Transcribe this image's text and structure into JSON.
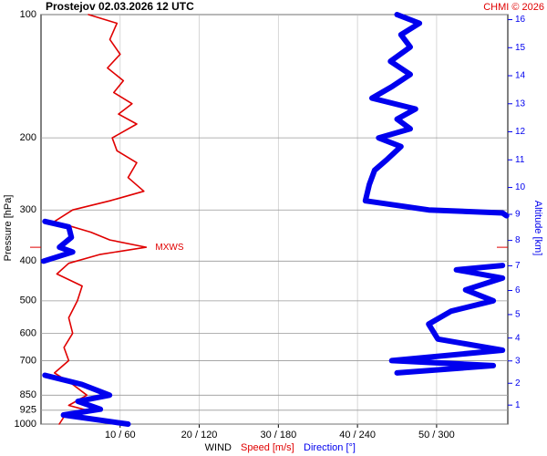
{
  "chart_data": {
    "type": "line",
    "title": "Prostejov    02.03.2026 12 UTC",
    "credit": "CHMI © 2026",
    "ylabel": "Pressure [hPa]",
    "y2label": "Altitude [km]",
    "xlabel_prefix": "WIND",
    "xlabel_speed": "Speed [m/s]",
    "xlabel_direction": "Direction [°]",
    "annotation": {
      "text": "MXWS",
      "pressure": 370
    },
    "log_y": true,
    "ylim": [
      1000,
      100
    ],
    "yticks": [
      100,
      200,
      300,
      400,
      500,
      600,
      700,
      850,
      925,
      1000
    ],
    "y2ticks": [
      1,
      2,
      3,
      4,
      5,
      6,
      7,
      8,
      9,
      10,
      11,
      12,
      13,
      14,
      15,
      16
    ],
    "xlim": [
      0,
      59
    ],
    "x2lim": [
      0,
      354
    ],
    "xticks": [
      {
        "value": 10,
        "label": "10 / 60"
      },
      {
        "value": 20,
        "label": "20 / 120"
      },
      {
        "value": 30,
        "label": "30 / 180"
      },
      {
        "value": 40,
        "label": "40 / 240"
      },
      {
        "value": 50,
        "label": "50 / 300"
      }
    ],
    "grid": true,
    "series": [
      {
        "name": "Speed [m/s]",
        "color": "#e00000",
        "axis": "x",
        "pressure": [
          100,
          105,
          115,
          125,
          135,
          145,
          155,
          165,
          175,
          185,
          200,
          215,
          230,
          250,
          270,
          285,
          300,
          320,
          340,
          355,
          370,
          385,
          405,
          430,
          460,
          500,
          550,
          600,
          650,
          700,
          750,
          800,
          850,
          900,
          925,
          960,
          1000
        ],
        "values": [
          6.0,
          9.6,
          8.7,
          10.0,
          8.4,
          10.4,
          9.2,
          11.5,
          9.8,
          12.1,
          9.0,
          9.6,
          12.1,
          11.0,
          13.0,
          8.7,
          4.0,
          1.7,
          6.3,
          8.7,
          13.3,
          7.5,
          3.5,
          2.0,
          5.2,
          4.6,
          3.5,
          4.0,
          2.9,
          3.5,
          1.7,
          4.0,
          5.8,
          3.5,
          5.8,
          2.9,
          2.3
        ]
      },
      {
        "name": "Direction [°]",
        "color": "#0000ee",
        "axis": "x2",
        "pressure": [
          100,
          105,
          112,
          120,
          130,
          140,
          150,
          160,
          170,
          180,
          190,
          200,
          210,
          225,
          240,
          260,
          285,
          300,
          305,
          310,
          315,
          320,
          330,
          350,
          370,
          380,
          400,
          405,
          410,
          420,
          440,
          470,
          500,
          530,
          570,
          620,
          660,
          700,
          720,
          750,
          755,
          760,
          800,
          850,
          880,
          920,
          950,
          1000
        ],
        "values": [
          270,
          287,
          273,
          280,
          265,
          280,
          266,
          251,
          284,
          270,
          280,
          256,
          273,
          263,
          253,
          249,
          246,
          294,
          350,
          353,
          null,
          3,
          21,
          23,
          14,
          24,
          2,
          null,
          350,
          315,
          350,
          322,
          343,
          311,
          294,
          301,
          350,
          266,
          343,
          270,
          null,
          3,
          31,
          52,
          28,
          45,
          17,
          66
        ]
      }
    ]
  }
}
